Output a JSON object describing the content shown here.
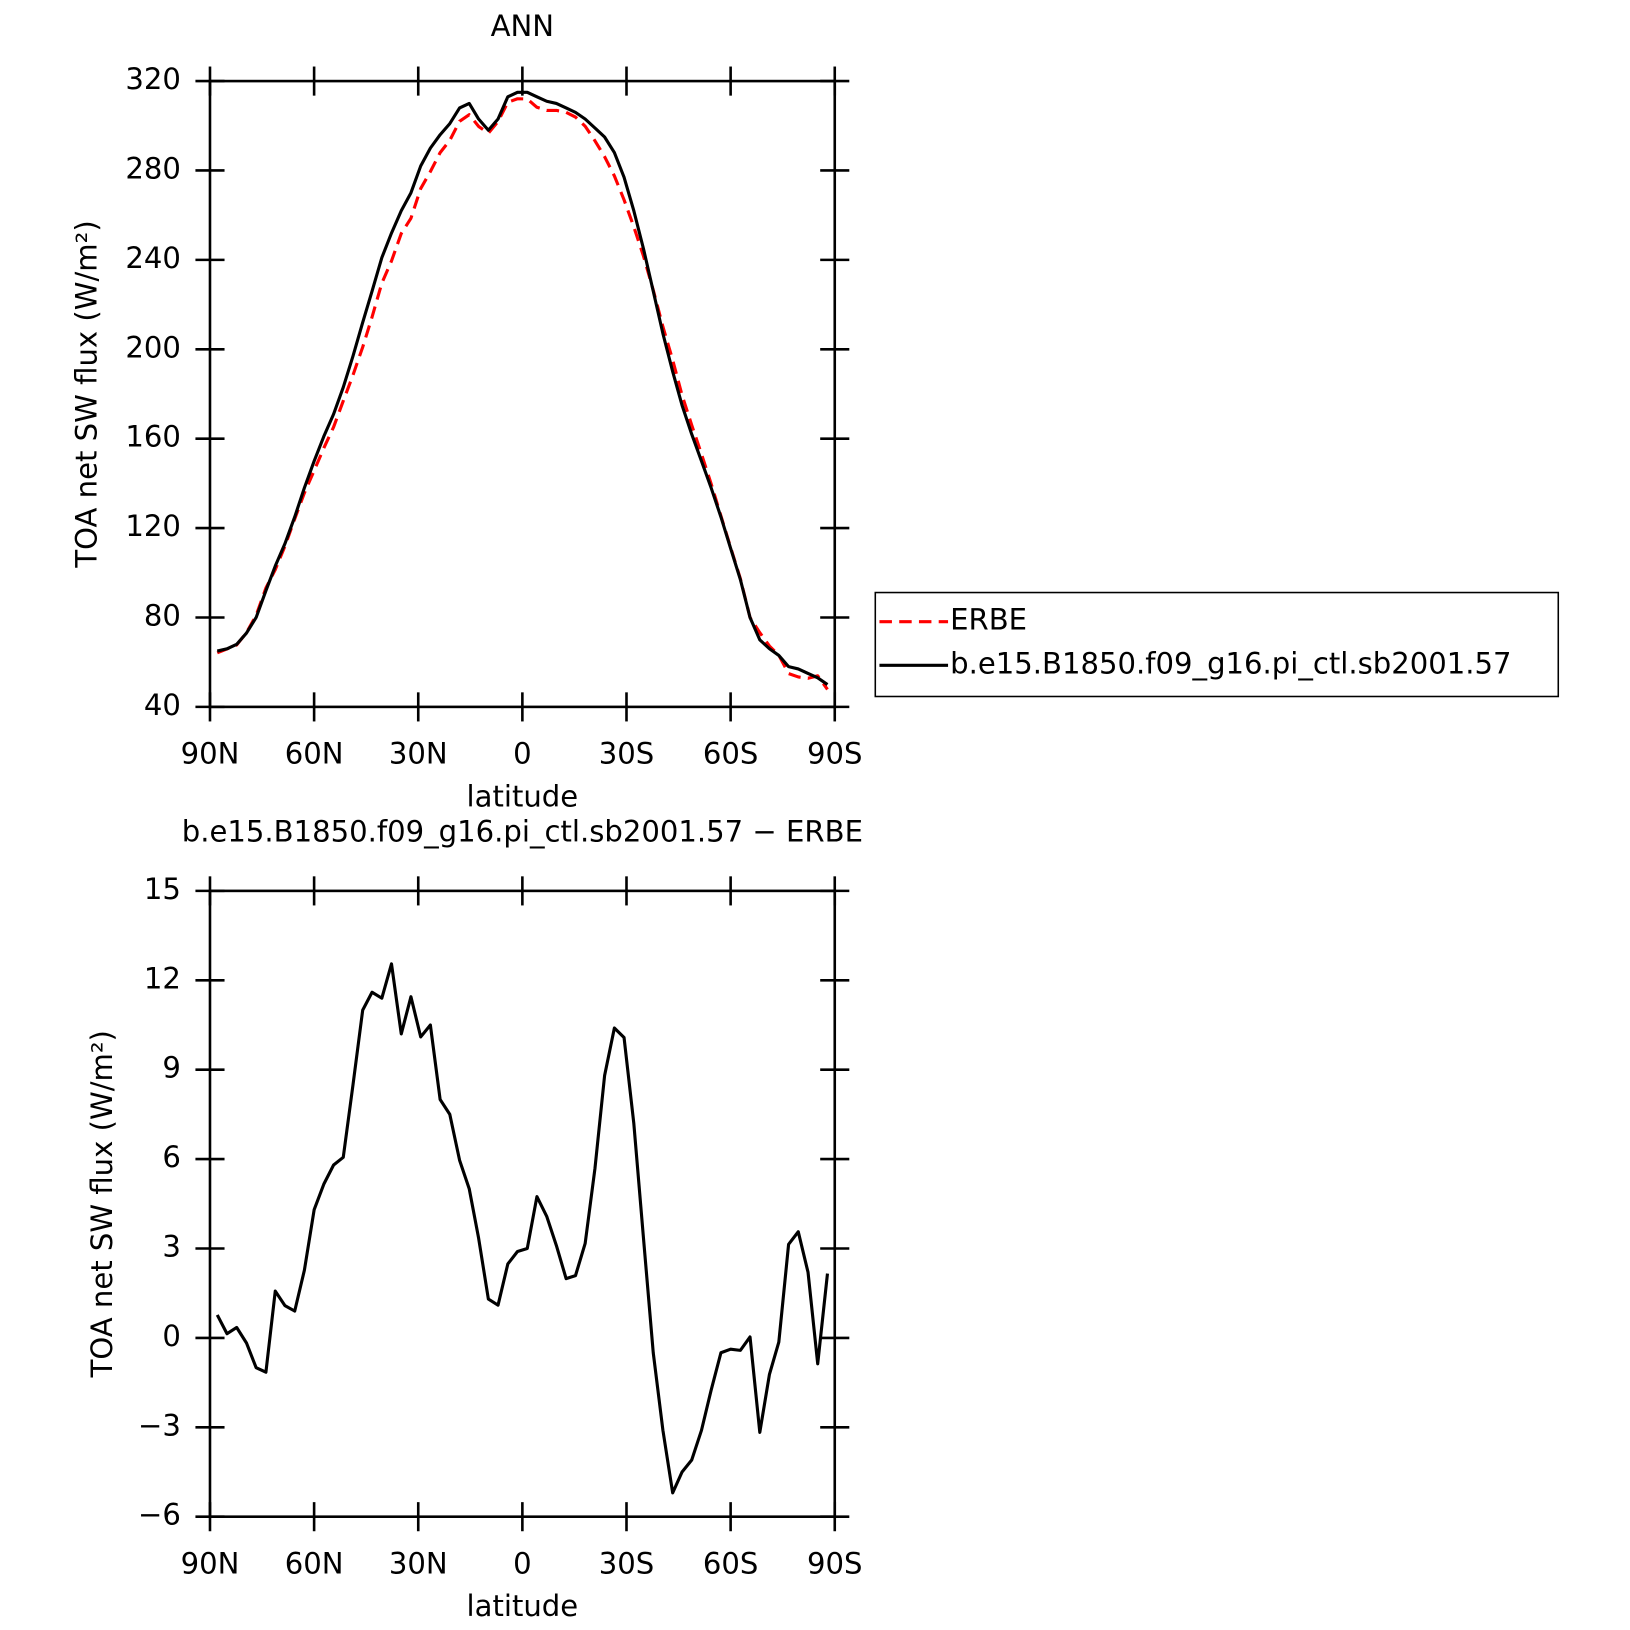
{
  "chart_data": [
    {
      "type": "line",
      "title": "ANN",
      "xlabel": "latitude",
      "ylabel": "TOA net SW flux (W/m²)",
      "x": [
        87.9,
        85.1,
        82.3,
        79.5,
        76.7,
        73.9,
        71.2,
        68.4,
        65.6,
        62.8,
        60.0,
        57.2,
        54.4,
        51.6,
        48.8,
        46.0,
        43.3,
        40.5,
        37.7,
        34.9,
        32.1,
        29.3,
        26.5,
        23.7,
        20.9,
        18.1,
        15.3,
        12.6,
        9.8,
        7.0,
        4.2,
        1.4,
        -1.4,
        -4.2,
        -7.0,
        -9.8,
        -12.6,
        -15.3,
        -18.1,
        -20.9,
        -23.7,
        -26.5,
        -29.3,
        -32.1,
        -34.9,
        -37.7,
        -40.5,
        -43.3,
        -46.0,
        -48.8,
        -51.6,
        -54.4,
        -57.2,
        -60.0,
        -62.8,
        -65.6,
        -68.4,
        -71.2,
        -73.9,
        -76.7,
        -79.5,
        -82.3,
        -85.1,
        -87.9
      ],
      "series": [
        {
          "name": "ERBE",
          "color": "#ff0000",
          "dashed": true,
          "values": [
            64.2,
            65.9,
            67.7,
            73.2,
            81.0,
            93.2,
            101.4,
            111.9,
            124.1,
            135.7,
            145.7,
            155.8,
            165.2,
            176.9,
            188.5,
            201.0,
            214.4,
            229.6,
            239.5,
            251.8,
            258.6,
            271.9,
            279.5,
            288.0,
            293.5,
            302.0,
            305.0,
            299.7,
            296.7,
            301.9,
            310.5,
            312.1,
            312.0,
            308.3,
            306.9,
            306.9,
            306.0,
            303.9,
            299.8,
            293.3,
            286.2,
            277.6,
            266.9,
            254.8,
            241.7,
            226.5,
            210.1,
            195.2,
            179.5,
            166.1,
            153.1,
            139.8,
            125.5,
            111.4,
            97.4,
            80.0,
            73.2,
            67.2,
            63.1,
            54.9,
            53.4,
            52.8,
            53.9,
            47.8
          ]
        },
        {
          "name": "b.e15.B1850.f09_g16.pi_ctl.sb2001.57",
          "color": "#000000",
          "dashed": false,
          "values": [
            65,
            66,
            68,
            73,
            80,
            92,
            103,
            113,
            125,
            138,
            150,
            161,
            171,
            183,
            197,
            212,
            226,
            241,
            252,
            262,
            270,
            282,
            290,
            296,
            301,
            308,
            310,
            303,
            298,
            303,
            313,
            315,
            315,
            313,
            311,
            310,
            308,
            306,
            303,
            299,
            295,
            288,
            277,
            262,
            245,
            226,
            207,
            190,
            175,
            162,
            150,
            138,
            125,
            111,
            97,
            80,
            70,
            66,
            63,
            58,
            57,
            55,
            53,
            50
          ]
        }
      ],
      "xlim": [
        90,
        -90
      ],
      "xticks": [
        {
          "value": 90,
          "label": "90N"
        },
        {
          "value": 60,
          "label": "60N"
        },
        {
          "value": 30,
          "label": "30N"
        },
        0,
        {
          "value": -30,
          "label": "30S"
        },
        {
          "value": -60,
          "label": "60S"
        },
        {
          "value": -90,
          "label": "90S"
        }
      ],
      "ylim": [
        40,
        320
      ],
      "yticks": [
        40,
        80,
        120,
        160,
        200,
        240,
        280,
        320
      ],
      "legend": "right"
    },
    {
      "type": "line",
      "title": "b.e15.B1850.f09_g16.pi_ctl.sb2001.57 − ERBE",
      "xlabel": "latitude",
      "ylabel": "TOA net SW flux (W/m²)",
      "x": [
        87.9,
        85.1,
        82.3,
        79.5,
        76.7,
        73.9,
        71.2,
        68.4,
        65.6,
        62.8,
        60.0,
        57.2,
        54.4,
        51.6,
        48.8,
        46.0,
        43.3,
        40.5,
        37.7,
        34.9,
        32.1,
        29.3,
        26.5,
        23.7,
        20.9,
        18.1,
        15.3,
        12.6,
        9.8,
        7.0,
        4.2,
        1.4,
        -1.4,
        -4.2,
        -7.0,
        -9.8,
        -12.6,
        -15.3,
        -18.1,
        -20.9,
        -23.7,
        -26.5,
        -29.3,
        -32.1,
        -34.9,
        -37.7,
        -40.5,
        -43.3,
        -46.0,
        -48.8,
        -51.6,
        -54.4,
        -57.2,
        -60.0,
        -62.8,
        -65.6,
        -68.4,
        -71.2,
        -73.9,
        -76.7,
        -79.5,
        -82.3,
        -85.1,
        -87.9
      ],
      "series": [
        {
          "color": "#000000",
          "dashed": false,
          "values": [
            0.77,
            0.14,
            0.35,
            -0.17,
            -1.0,
            -1.15,
            1.57,
            1.08,
            0.9,
            2.27,
            4.3,
            5.16,
            5.8,
            6.06,
            8.5,
            11.0,
            11.6,
            11.4,
            12.55,
            10.2,
            11.45,
            10.1,
            10.5,
            8.0,
            7.5,
            5.96,
            5.0,
            3.35,
            1.3,
            1.1,
            2.48,
            2.9,
            3.0,
            4.74,
            4.08,
            3.1,
            1.99,
            2.09,
            3.17,
            5.68,
            8.8,
            10.4,
            10.08,
            7.2,
            3.35,
            -0.5,
            -3.1,
            -5.2,
            -4.5,
            -4.1,
            -3.1,
            -1.75,
            -0.5,
            -0.38,
            -0.42,
            0.03,
            -3.17,
            -1.22,
            -0.14,
            3.14,
            3.56,
            2.2,
            -0.87,
            2.16
          ]
        }
      ],
      "xlim": [
        90,
        -90
      ],
      "xticks": [
        {
          "value": 90,
          "label": "90N"
        },
        {
          "value": 60,
          "label": "60N"
        },
        {
          "value": 30,
          "label": "30N"
        },
        0,
        {
          "value": -30,
          "label": "30S"
        },
        {
          "value": -60,
          "label": "60S"
        },
        {
          "value": -90,
          "label": "90S"
        }
      ],
      "ylim": [
        -6,
        15
      ],
      "yticks": [
        {
          "value": -6,
          "label": "−6"
        },
        {
          "value": -3,
          "label": "−3"
        },
        0,
        3,
        6,
        9,
        12,
        15
      ]
    }
  ]
}
